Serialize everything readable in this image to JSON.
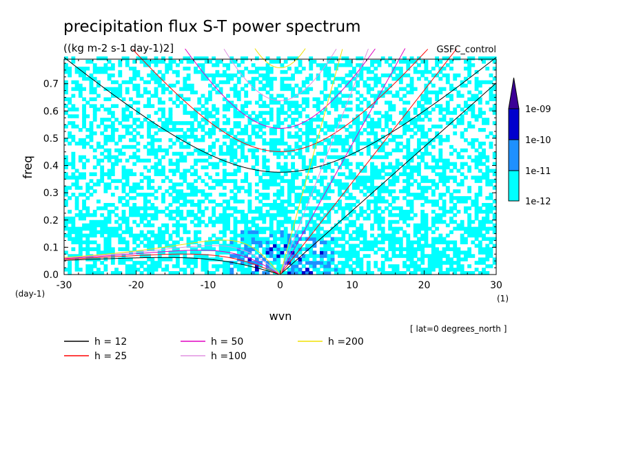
{
  "chart_data": {
    "type": "heatmap",
    "title": "precipitation flux S-T power spectrum",
    "units": "((kg m-2 s-1 day-1)2]",
    "model": "GSFC_control",
    "xlabel": "wvn",
    "ylabel": "freq",
    "x_units": "(1)",
    "y_units": "(day-1)",
    "annotation": "[ lat=0 degrees_north ]",
    "xlim": [
      -30,
      30
    ],
    "ylim": [
      0,
      0.79
    ],
    "x_ticks": [
      -30,
      -20,
      -10,
      0,
      10,
      20,
      30
    ],
    "x_tick_labels": [
      "-30",
      "-20",
      "-10",
      "0",
      "10",
      "20",
      "30"
    ],
    "y_ticks": [
      0.0,
      0.1,
      0.2,
      0.3,
      0.4,
      0.5,
      0.6,
      0.7
    ],
    "y_tick_labels": [
      "0.0",
      "0.1",
      "0.2",
      "0.3",
      "0.4",
      "0.5",
      "0.6",
      "0.7"
    ],
    "colorbar": {
      "levels": [
        "1e-12",
        "1e-11",
        "1e-10",
        "1e-09"
      ],
      "colors": [
        "#00ffff",
        "#1e90ff",
        "#0000cd",
        "#3c0096"
      ]
    },
    "dispersion_curves": [
      {
        "label": "h = 12",
        "h": 12,
        "color": "#000000"
      },
      {
        "label": "h = 25",
        "h": 25,
        "color": "#ff0000"
      },
      {
        "label": "h = 50",
        "h": 50,
        "color": "#e000c0"
      },
      {
        "label": "h =100",
        "h": 100,
        "color": "#e090e0"
      },
      {
        "label": "h =200",
        "h": 200,
        "color": "#f0e000"
      }
    ]
  }
}
